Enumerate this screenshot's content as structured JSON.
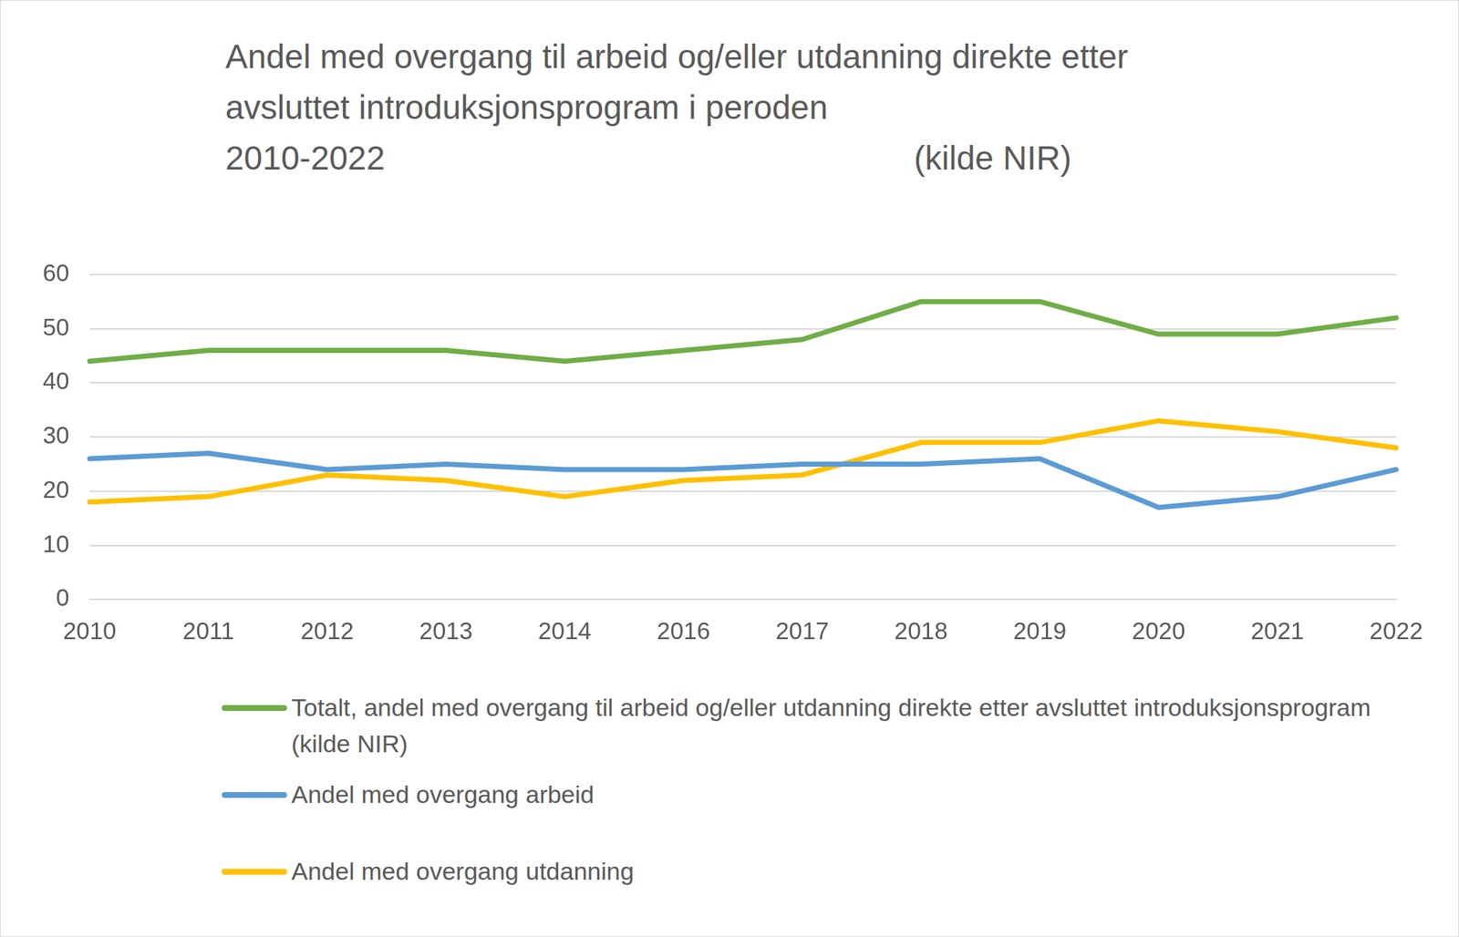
{
  "chart_data": {
    "type": "line",
    "title": [
      "Andel med overgang til arbeid og/eller utdanning direkte etter",
      "avsluttet introduksjonsprogram i peroden",
      "2010-2022"
    ],
    "annotations": [
      "(kilde NIR)"
    ],
    "categories": [
      "2010",
      "2011",
      "2012",
      "2013",
      "2014",
      "2016",
      "2017",
      "2018",
      "2019",
      "2020",
      "2021",
      "2022"
    ],
    "series": [
      {
        "name": "Totalt, andel med overgang til arbeid og/eller utdanning direkte etter avsluttet introduksjonsprogram (kilde NIR)",
        "color": "#70ad47",
        "values": [
          44,
          46,
          46,
          46,
          44,
          46,
          48,
          55,
          55,
          49,
          49,
          52
        ]
      },
      {
        "name": "Andel med overgang arbeid",
        "color": "#5b9bd5",
        "values": [
          26,
          27,
          24,
          25,
          24,
          24,
          25,
          25,
          26,
          17,
          19,
          24
        ]
      },
      {
        "name": "Andel med overgang utdanning",
        "color": "#ffc000",
        "values": [
          18,
          19,
          23,
          22,
          19,
          22,
          23,
          29,
          29,
          33,
          31,
          28
        ]
      }
    ],
    "ylim": [
      0,
      60
    ],
    "yticks": [
      0,
      10,
      20,
      30,
      40,
      50,
      60
    ],
    "grid": true,
    "legend": "bottom",
    "marker": "none"
  }
}
